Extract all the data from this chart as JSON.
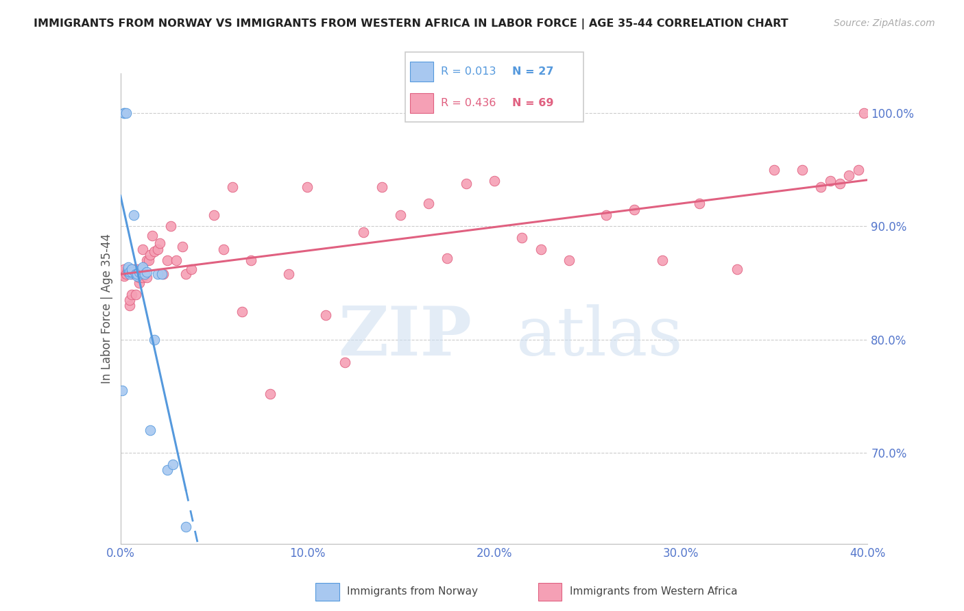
{
  "title": "IMMIGRANTS FROM NORWAY VS IMMIGRANTS FROM WESTERN AFRICA IN LABOR FORCE | AGE 35-44 CORRELATION CHART",
  "source": "Source: ZipAtlas.com",
  "ylabel": "In Labor Force | Age 35-44",
  "legend_norway": "Immigrants from Norway",
  "legend_w_africa": "Immigrants from Western Africa",
  "R_norway": "0.013",
  "N_norway": "27",
  "R_w_africa": "0.436",
  "N_w_africa": "69",
  "color_norway": "#a8c8f0",
  "color_w_africa": "#f5a0b5",
  "line_norway": "#5599dd",
  "line_w_africa": "#e06080",
  "x_min": 0.0,
  "x_max": 0.4,
  "y_min": 0.62,
  "y_max": 1.035,
  "ytick_labels": [
    "70.0%",
    "80.0%",
    "90.0%",
    "100.0%"
  ],
  "ytick_values": [
    0.7,
    0.8,
    0.9,
    1.0
  ],
  "xtick_labels": [
    "0.0%",
    "10.0%",
    "20.0%",
    "30.0%",
    "40.0%"
  ],
  "xtick_values": [
    0.0,
    0.1,
    0.2,
    0.3,
    0.4
  ],
  "norway_x": [
    0.001,
    0.002,
    0.002,
    0.003,
    0.004,
    0.004,
    0.004,
    0.005,
    0.005,
    0.006,
    0.006,
    0.007,
    0.008,
    0.009,
    0.009,
    0.01,
    0.011,
    0.012,
    0.013,
    0.014,
    0.016,
    0.018,
    0.02,
    0.022,
    0.025,
    0.028,
    0.035
  ],
  "norway_y": [
    0.755,
    1.0,
    1.0,
    1.0,
    0.86,
    0.862,
    0.864,
    0.858,
    0.86,
    0.86,
    0.862,
    0.91,
    0.858,
    0.856,
    0.858,
    0.86,
    0.862,
    0.864,
    0.858,
    0.86,
    0.72,
    0.8,
    0.858,
    0.858,
    0.685,
    0.69,
    0.635
  ],
  "w_africa_x": [
    0.001,
    0.001,
    0.002,
    0.002,
    0.003,
    0.004,
    0.004,
    0.005,
    0.005,
    0.006,
    0.006,
    0.007,
    0.008,
    0.008,
    0.009,
    0.01,
    0.01,
    0.011,
    0.012,
    0.012,
    0.013,
    0.014,
    0.014,
    0.015,
    0.016,
    0.017,
    0.018,
    0.02,
    0.021,
    0.023,
    0.025,
    0.027,
    0.03,
    0.033,
    0.035,
    0.038,
    0.05,
    0.055,
    0.06,
    0.065,
    0.07,
    0.08,
    0.09,
    0.1,
    0.11,
    0.12,
    0.13,
    0.14,
    0.15,
    0.165,
    0.175,
    0.185,
    0.2,
    0.215,
    0.225,
    0.24,
    0.26,
    0.275,
    0.29,
    0.31,
    0.33,
    0.35,
    0.365,
    0.375,
    0.38,
    0.385,
    0.39,
    0.395,
    0.398
  ],
  "w_africa_y": [
    0.858,
    0.86,
    0.856,
    0.862,
    0.858,
    0.86,
    0.862,
    0.83,
    0.835,
    0.84,
    0.858,
    0.862,
    0.84,
    0.858,
    0.862,
    0.85,
    0.855,
    0.86,
    0.855,
    0.88,
    0.858,
    0.87,
    0.855,
    0.87,
    0.875,
    0.892,
    0.878,
    0.88,
    0.885,
    0.858,
    0.87,
    0.9,
    0.87,
    0.882,
    0.858,
    0.862,
    0.91,
    0.88,
    0.935,
    0.825,
    0.87,
    0.752,
    0.858,
    0.935,
    0.822,
    0.78,
    0.895,
    0.935,
    0.91,
    0.92,
    0.872,
    0.938,
    0.94,
    0.89,
    0.88,
    0.87,
    0.91,
    0.915,
    0.87,
    0.92,
    0.862,
    0.95,
    0.95,
    0.935,
    0.94,
    0.938,
    0.945,
    0.95,
    1.0
  ],
  "watermark_zip": "ZIP",
  "watermark_atlas": "atlas",
  "background_color": "#ffffff",
  "grid_color": "#cccccc",
  "tick_color": "#5577cc"
}
